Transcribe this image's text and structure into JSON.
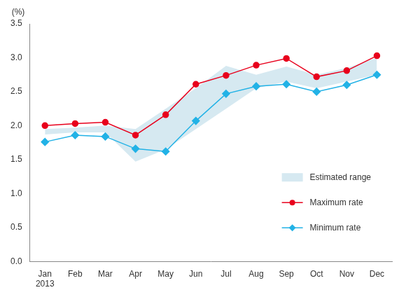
{
  "chart_data": {
    "type": "line",
    "y_label": "(%)",
    "year": "2013",
    "categories": [
      "Jan",
      "Feb",
      "Mar",
      "Apr",
      "May",
      "Jun",
      "Jul",
      "Aug",
      "Sep",
      "Oct",
      "Nov",
      "Dec"
    ],
    "series": [
      {
        "name": "Estimated range",
        "type": "range",
        "color": "#d6e9f1",
        "low": [
          1.87,
          1.9,
          1.9,
          1.47,
          1.65,
          1.95,
          2.25,
          2.55,
          2.65,
          2.55,
          2.65,
          2.75
        ],
        "high": [
          1.95,
          1.97,
          2.0,
          1.95,
          2.25,
          2.55,
          2.88,
          2.75,
          2.87,
          2.75,
          2.85,
          3.0
        ]
      },
      {
        "name": "Maximum rate",
        "color": "#e8001c",
        "marker": "circle",
        "values": [
          2.0,
          2.03,
          2.05,
          1.86,
          2.16,
          2.61,
          2.74,
          2.89,
          2.99,
          2.72,
          2.81,
          3.03
        ]
      },
      {
        "name": "Minimum rate",
        "color": "#22b2e6",
        "marker": "diamond",
        "values": [
          1.76,
          1.86,
          1.84,
          1.66,
          1.62,
          2.07,
          2.47,
          2.58,
          2.61,
          2.5,
          2.6,
          2.75
        ]
      }
    ],
    "ylim": [
      0,
      3.5
    ],
    "yticks": [
      {
        "value": 0,
        "label": "0.0"
      },
      0.5,
      {
        "value": 1,
        "label": "1.0"
      },
      1.5,
      {
        "value": 2,
        "label": "2.0"
      },
      2.5,
      {
        "value": 3,
        "label": "3.0"
      },
      3.5
    ],
    "grid": false,
    "legend": "lower right"
  }
}
